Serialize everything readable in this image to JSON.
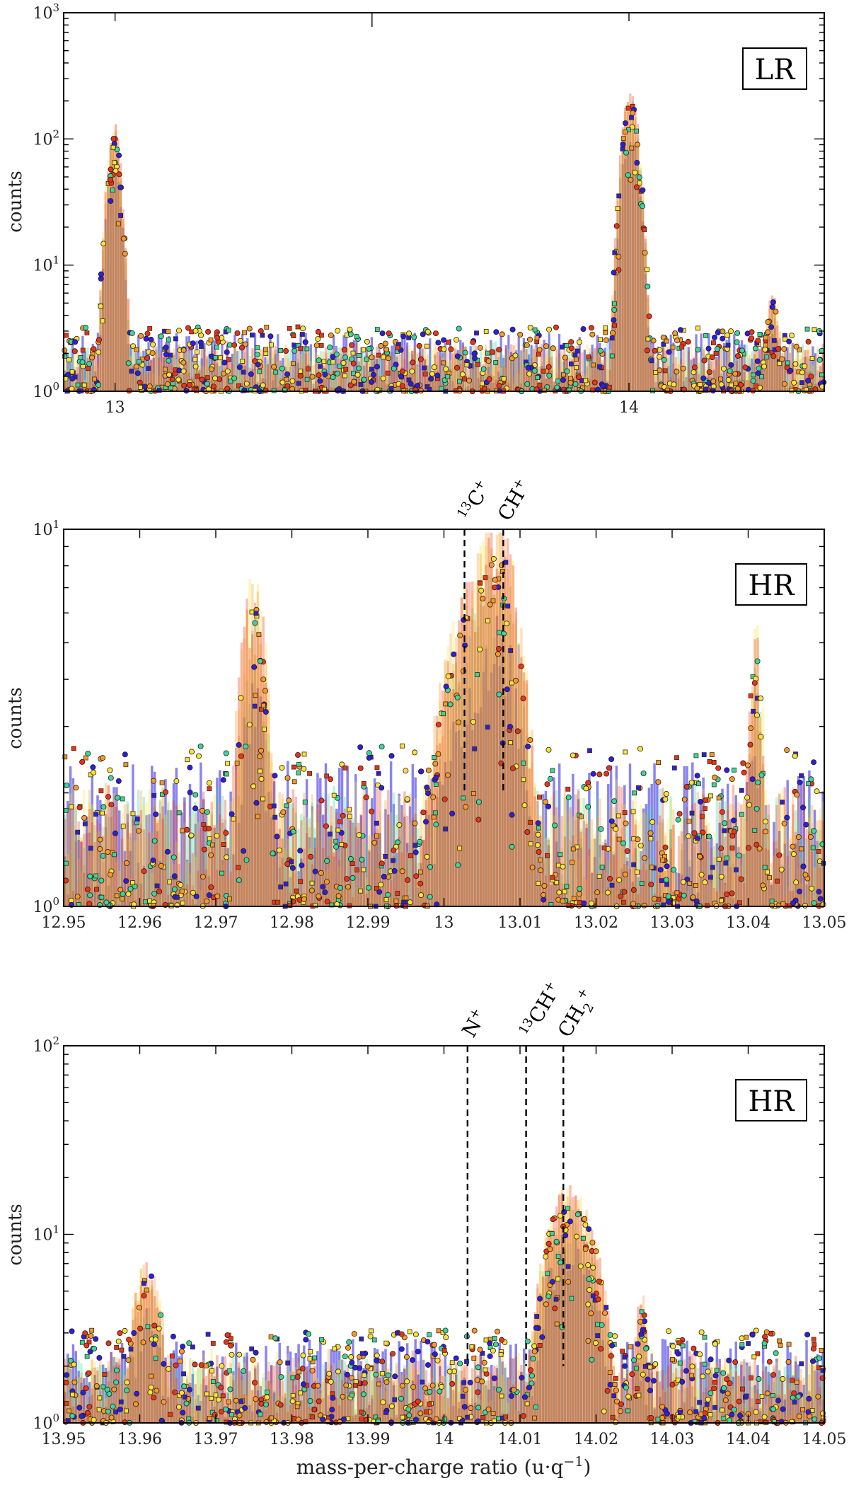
{
  "colors": {
    "cool": "#2a1fe0",
    "cyan": "#38d6a0",
    "yellow": "#f6e23a",
    "orange": "#f39a2a",
    "red": "#e8341c"
  },
  "chart_data": [
    {
      "type": "scatter",
      "badge": "LR",
      "ylabel": "counts",
      "xlabel": "",
      "yscale": "log",
      "xlim": [
        12.9,
        14.38
      ],
      "ylim": [
        1,
        1000
      ],
      "x_ticks": [
        13,
        14
      ],
      "x_tick_labels": [
        "13",
        "14"
      ],
      "y_tick_labels": [
        {
          "base": "10",
          "exp": "0"
        },
        {
          "base": "10",
          "exp": "1"
        },
        {
          "base": "10",
          "exp": "2"
        },
        {
          "base": "10",
          "exp": "3"
        }
      ],
      "noise_level": 2.6,
      "peaks": [
        {
          "center": 12.998,
          "height": 110,
          "width": 0.011
        },
        {
          "center": 14.003,
          "height": 200,
          "width": 0.013
        },
        {
          "center": 14.28,
          "height": 5,
          "width": 0.012
        }
      ],
      "markers": []
    },
    {
      "type": "scatter",
      "badge": "HR",
      "ylabel": "counts",
      "xlabel": "",
      "yscale": "log",
      "xlim": [
        12.95,
        13.05
      ],
      "ylim": [
        1,
        10
      ],
      "x_ticks": [
        12.95,
        12.96,
        12.97,
        12.98,
        12.99,
        13,
        13.01,
        13.02,
        13.03,
        13.04,
        13.05
      ],
      "x_tick_labels": [
        "12.95",
        "12.96",
        "12.97",
        "12.98",
        "12.99",
        "13",
        "13.01",
        "13.02",
        "13.03",
        "13.04",
        "13.05"
      ],
      "y_tick_labels": [
        {
          "base": "10",
          "exp": "0"
        },
        {
          "base": "10",
          "exp": "1"
        }
      ],
      "noise_level": 2.2,
      "peaks": [
        {
          "center": 12.975,
          "height": 6.2,
          "width": 0.0018
        },
        {
          "center": 13.0035,
          "height": 5.2,
          "width": 0.004
        },
        {
          "center": 13.0078,
          "height": 5.4,
          "width": 0.0025
        },
        {
          "center": 13.041,
          "height": 4.8,
          "width": 0.0009
        }
      ],
      "markers": [
        {
          "label": "13C+",
          "iso": "13",
          "main": "C",
          "sup": "+",
          "sub": "",
          "x": 13.0027
        },
        {
          "label": "CH+",
          "iso": "",
          "main": "CH",
          "sup": "+",
          "sub": "",
          "x": 13.0078
        }
      ]
    },
    {
      "type": "scatter",
      "badge": "HR",
      "ylabel": "counts",
      "xlabel": "mass-per-charge ratio (u·q−1)",
      "yscale": "log",
      "xlim": [
        13.95,
        14.05
      ],
      "ylim": [
        1,
        100
      ],
      "x_ticks": [
        13.95,
        13.96,
        13.97,
        13.98,
        13.99,
        14,
        14.01,
        14.02,
        14.03,
        14.04,
        14.05
      ],
      "x_tick_labels": [
        "13.95",
        "13.96",
        "13.97",
        "13.98",
        "13.99",
        "14",
        "14.01",
        "14.02",
        "14.03",
        "14.04",
        "14.05"
      ],
      "y_tick_labels": [
        {
          "base": "10",
          "exp": "0"
        },
        {
          "base": "10",
          "exp": "1"
        },
        {
          "base": "10",
          "exp": "2"
        }
      ],
      "noise_level": 2.5,
      "peaks": [
        {
          "center": 13.961,
          "height": 6.0,
          "width": 0.0018
        },
        {
          "center": 14.0155,
          "height": 13,
          "width": 0.0022
        },
        {
          "center": 14.019,
          "height": 7,
          "width": 0.002
        },
        {
          "center": 14.026,
          "height": 4,
          "width": 0.0008
        }
      ],
      "markers": [
        {
          "label": "N+",
          "iso": "",
          "main": "N",
          "sup": "+",
          "sub": "",
          "x": 14.0031
        },
        {
          "label": "13CH+",
          "iso": "13",
          "main": "CH",
          "sup": "+",
          "sub": "",
          "x": 14.0108
        },
        {
          "label": "CH2+",
          "iso": "",
          "main": "CH",
          "sup": "+",
          "sub": "2",
          "x": 14.0157
        }
      ]
    }
  ],
  "xlabel_parts": {
    "text": "mass-per-charge ratio (u·q",
    "sup": "−1",
    "close": ")"
  }
}
